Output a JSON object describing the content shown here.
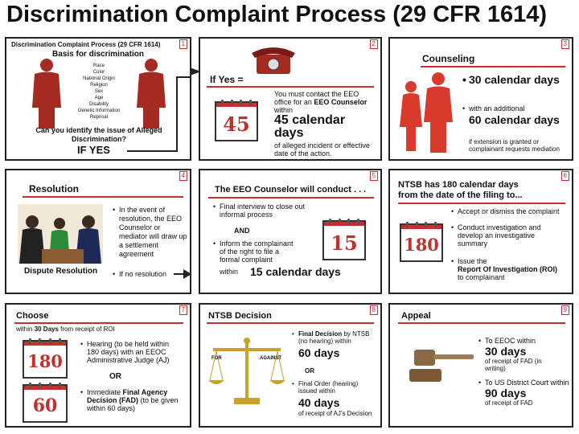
{
  "page": {
    "title": "Discrimination Complaint Process (29 CFR 1614)"
  },
  "colors": {
    "accent": "#c4302b",
    "border": "#222222"
  },
  "p1": {
    "num": "1",
    "header": "Discrimination Complaint Process (29 CFR 1614)",
    "subtitle": "Basis for discrimination",
    "bases": [
      "Race",
      "Color",
      "National Origin",
      "Religion",
      "Sex",
      "Age",
      "Disability",
      "Genetic Information",
      "Reprisal"
    ],
    "question": "Can you identify the issue of Alleged Discrimination?",
    "ifyes": "IF YES"
  },
  "p2": {
    "num": "2",
    "ifyes": "If Yes =",
    "text1a": "You must contact the EEO office for an ",
    "text1b": "EEO Counselor",
    "text1c": " within",
    "cal": "45",
    "big": "45 calendar days",
    "text2": "of alleged incident or effective date of the action."
  },
  "p3": {
    "num": "3",
    "title": "Counseling",
    "big1": "30 calendar days",
    "sub1": "with an additional",
    "big2": "60 calendar days",
    "sub2": "if extension is granted or complainant requests mediation"
  },
  "p4": {
    "num": "4",
    "title": "Resolution",
    "bullet1": "In the event of resolution, the EEO Counselor or mediator will draw up a settlement agreement",
    "caption": "Dispute Resolution",
    "bullet2": "If no resolution"
  },
  "p5": {
    "num": "5",
    "title": "The EEO Counselor will conduct . . .",
    "bullet1": "Final interview to close out informal process",
    "and": "AND",
    "bullet2": "Inform the complainant of the right to file a formal complaint",
    "within": "within",
    "big": "15 calendar days",
    "cal": "15"
  },
  "p6": {
    "num": "6",
    "title1": "NTSB has 180 calendar days",
    "title2": "from the date of the filing to...",
    "cal": "180",
    "bullet1": "Accept or dismiss the complaint",
    "bullet2": "Conduct investigation and develop an investigative summary",
    "bullet3a": "Issue the",
    "bullet3b": "Report Of Investigation (ROI)",
    "bullet3c": "to complainant"
  },
  "p7": {
    "num": "7",
    "title": "Choose",
    "sub_a": "within ",
    "sub_b": "30 Days",
    "sub_c": " from receipt of ROI",
    "cal1": "180",
    "bullet1": "Hearing (to be held within 180 days) with an EEOC Administrative Judge (AJ)",
    "or": "OR",
    "cal2": "60",
    "bullet2a": "Immediate ",
    "bullet2b": "Final Agency Decision (FAD)",
    "bullet2c": " (to be given within 60 days)"
  },
  "p8": {
    "num": "8",
    "title": "NTSB Decision",
    "for": "FOR",
    "against": "AGAINST",
    "fd_a": "Final Decision",
    "fd_b": " by NTSB",
    "fd_c": "(no hearing) within",
    "big1": "60 days",
    "or": "OR",
    "fo": "Final Order (hearing) issued within",
    "big2": "40 days",
    "fo2": "of receipt of AJ's Decision"
  },
  "p9": {
    "num": "9",
    "title": "Appeal",
    "b1": "To EEOC within",
    "big1": "30 days",
    "b1s": "of receipt of FAD (in writing)",
    "b2": "To US District Court within",
    "big2": "90 days",
    "b2s": "of receipt of FAD"
  }
}
